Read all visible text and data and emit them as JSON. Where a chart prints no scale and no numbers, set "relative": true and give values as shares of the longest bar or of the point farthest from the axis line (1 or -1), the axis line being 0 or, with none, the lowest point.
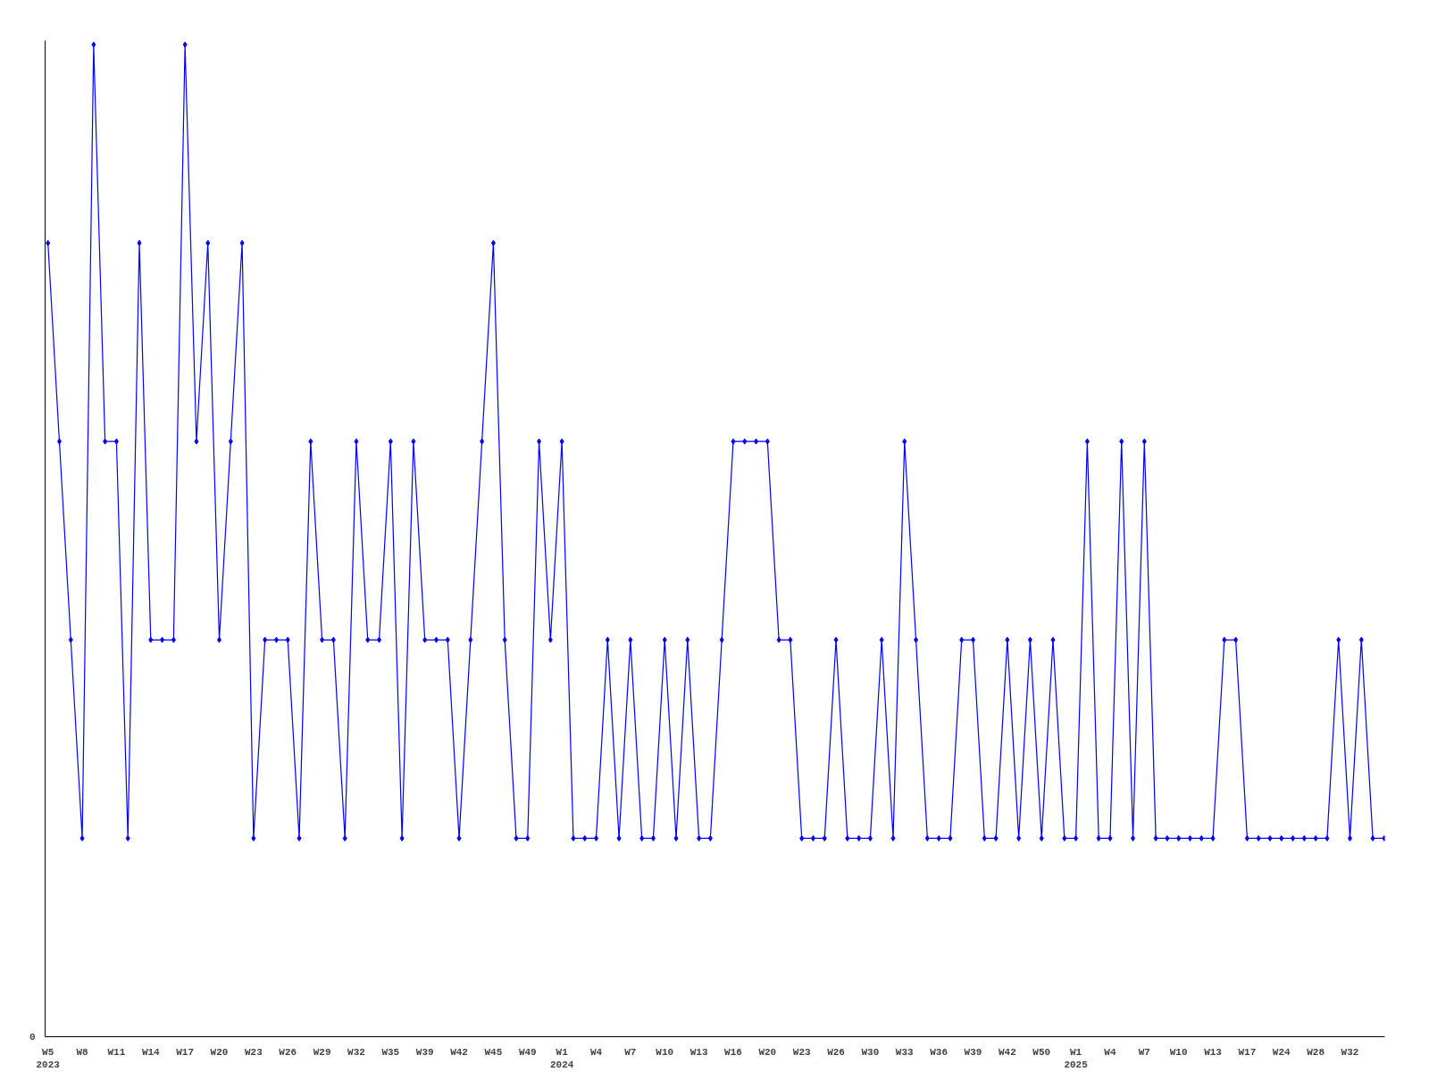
{
  "chart_data": {
    "type": "line",
    "relative": true,
    "marker": "diamond",
    "grid": false,
    "line_style": "solid",
    "annotations": [
      "0"
    ],
    "categories": [
      "W5\n2023",
      null,
      null,
      "W8",
      null,
      null,
      "W11",
      null,
      null,
      "W14",
      null,
      null,
      "W17",
      null,
      null,
      "W20",
      null,
      null,
      "W23",
      null,
      null,
      "W26",
      null,
      null,
      "W29",
      null,
      null,
      "W32",
      null,
      null,
      "W35",
      null,
      null,
      "W39",
      null,
      null,
      "W42",
      null,
      null,
      "W45",
      null,
      null,
      "W49",
      null,
      null,
      "W1\n2024",
      null,
      null,
      "W4",
      null,
      null,
      "W7",
      null,
      null,
      "W10",
      null,
      null,
      "W13",
      null,
      null,
      "W16",
      null,
      null,
      "W20",
      null,
      null,
      "W23",
      null,
      null,
      "W26",
      null,
      null,
      "W30",
      null,
      null,
      "W33",
      null,
      null,
      "W36",
      null,
      null,
      "W39",
      null,
      null,
      "W42",
      null,
      null,
      "W50",
      null,
      null,
      "W1\n2025",
      null,
      null,
      "W4",
      null,
      null,
      "W7",
      null,
      null,
      "W10",
      null,
      null,
      "W13",
      null,
      null,
      "W17",
      null,
      null,
      "W24",
      null,
      null,
      "W28",
      null,
      null,
      "W32",
      null,
      null,
      null
    ],
    "series": [
      {
        "color": "#0000ff",
        "values": [
          0.8,
          0.6,
          0.4,
          0.2,
          1,
          0.6,
          0.6,
          0.2,
          0.8,
          0.4,
          0.4,
          0.4,
          1,
          0.6,
          0.8,
          0.4,
          0.6,
          0.8,
          0.2,
          0.4,
          0.4,
          0.4,
          0.2,
          0.6,
          0.4,
          0.4,
          0.2,
          0.6,
          0.4,
          0.4,
          0.6,
          0.2,
          0.6,
          0.4,
          0.4,
          0.4,
          0.2,
          0.4,
          0.6,
          0.8,
          0.4,
          0.2,
          0.2,
          0.6,
          0.4,
          0.6,
          0.2,
          0.2,
          0.2,
          0.4,
          0.2,
          0.4,
          0.2,
          0.2,
          0.4,
          0.2,
          0.4,
          0.2,
          0.2,
          0.4,
          0.6,
          0.6,
          0.6,
          0.6,
          0.4,
          0.4,
          0.2,
          0.2,
          0.2,
          0.4,
          0.2,
          0.2,
          0.2,
          0.4,
          0.2,
          0.6,
          0.4,
          0.2,
          0.2,
          0.2,
          0.4,
          0.4,
          0.2,
          0.2,
          0.4,
          0.2,
          0.4,
          0.2,
          0.4,
          0.2,
          0.2,
          0.6,
          0.2,
          0.2,
          0.6,
          0.2,
          0.6,
          0.2,
          0.2,
          0.2,
          0.2,
          0.2,
          0.2,
          0.4,
          0.4,
          0.2,
          0.2,
          0.2,
          0.2,
          0.2,
          0.2,
          0.2,
          0.2,
          0.4,
          0.2,
          0.4,
          0.2,
          0.2
        ]
      }
    ]
  }
}
